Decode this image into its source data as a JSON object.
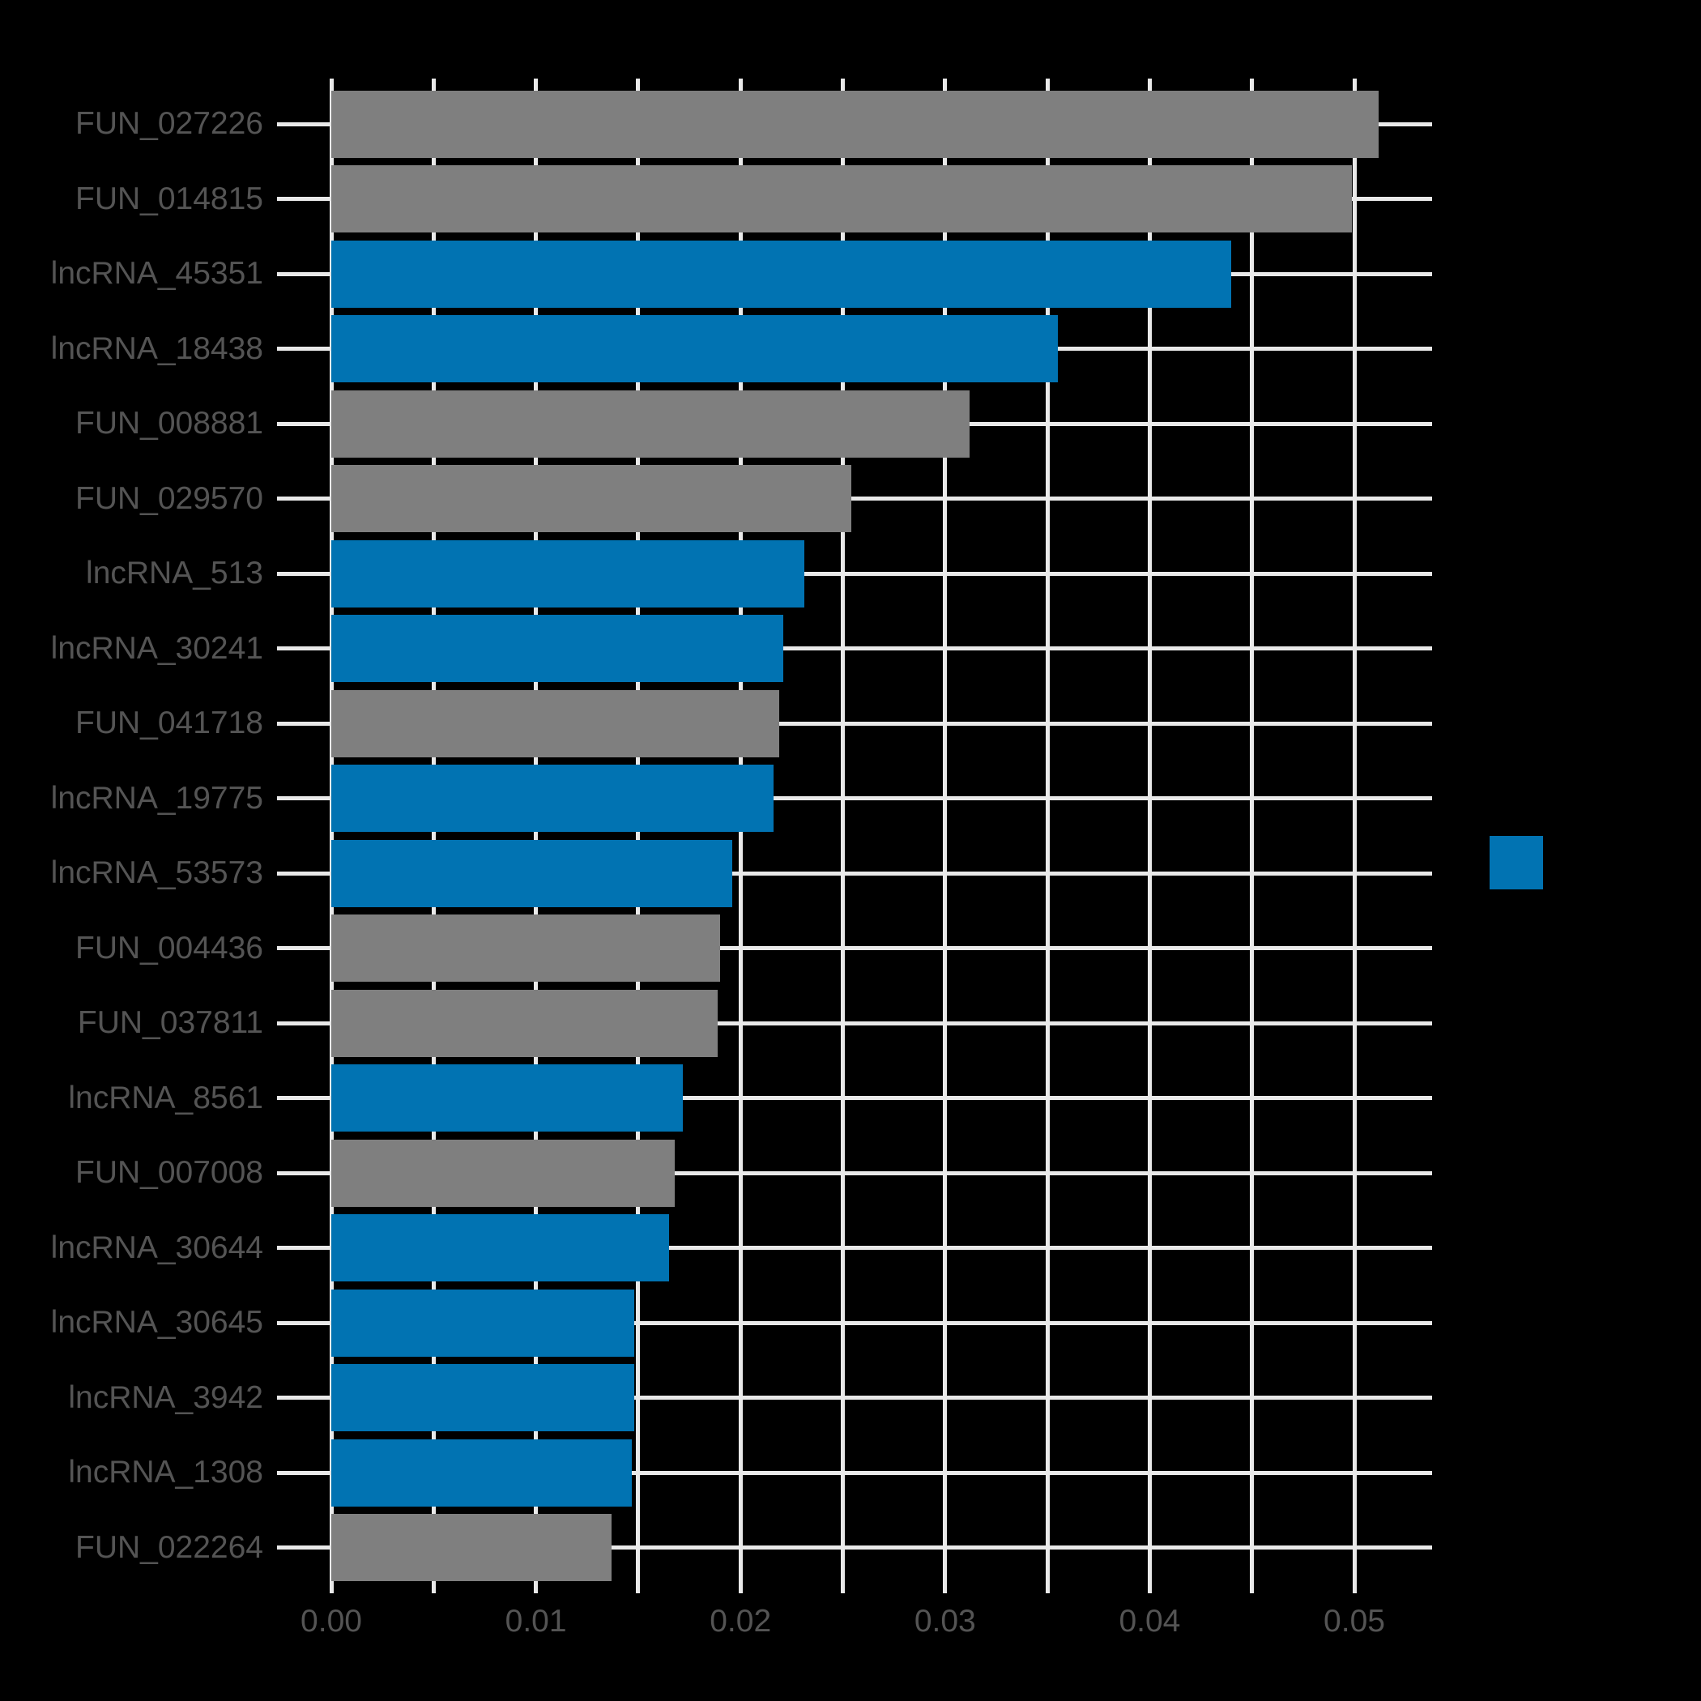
{
  "chart_data": {
    "type": "bar",
    "orientation": "horizontal",
    "title": "",
    "xlabel": "",
    "ylabel": "",
    "grid": true,
    "background_color": "#000000",
    "grid_color": "#e9e9e9",
    "text_color": "#545454",
    "xlim": [
      0,
      0.0538
    ],
    "x_tick_step": 0.005,
    "x_major_tick_labels": [
      "0.00",
      "0.01",
      "0.02",
      "0.03",
      "0.04",
      "0.05"
    ],
    "group_colors": {
      "lncRNA": "#0173b2",
      "FUN": "#7f7f7f"
    },
    "legend": {
      "visible": true,
      "swatch_color": "#0173b2",
      "label": ""
    },
    "items": [
      {
        "label": "FUN_027226",
        "group": "FUN",
        "value": 0.0512
      },
      {
        "label": "FUN_014815",
        "group": "FUN",
        "value": 0.0499
      },
      {
        "label": "lncRNA_45351",
        "group": "lncRNA",
        "value": 0.044
      },
      {
        "label": "lncRNA_18438",
        "group": "lncRNA",
        "value": 0.0355
      },
      {
        "label": "FUN_008881",
        "group": "FUN",
        "value": 0.0312
      },
      {
        "label": "FUN_029570",
        "group": "FUN",
        "value": 0.0254
      },
      {
        "label": "lncRNA_513",
        "group": "lncRNA",
        "value": 0.0231
      },
      {
        "label": "lncRNA_30241",
        "group": "lncRNA",
        "value": 0.0221
      },
      {
        "label": "FUN_041718",
        "group": "FUN",
        "value": 0.0219
      },
      {
        "label": "lncRNA_19775",
        "group": "lncRNA",
        "value": 0.0216
      },
      {
        "label": "lncRNA_53573",
        "group": "lncRNA",
        "value": 0.0196
      },
      {
        "label": "FUN_004436",
        "group": "FUN",
        "value": 0.019
      },
      {
        "label": "FUN_037811",
        "group": "FUN",
        "value": 0.0189
      },
      {
        "label": "lncRNA_8561",
        "group": "lncRNA",
        "value": 0.0172
      },
      {
        "label": "FUN_007008",
        "group": "FUN",
        "value": 0.0168
      },
      {
        "label": "lncRNA_30644",
        "group": "lncRNA",
        "value": 0.0165
      },
      {
        "label": "lncRNA_30645",
        "group": "lncRNA",
        "value": 0.0148
      },
      {
        "label": "lncRNA_3942",
        "group": "lncRNA",
        "value": 0.0148
      },
      {
        "label": "lncRNA_1308",
        "group": "lncRNA",
        "value": 0.0147
      },
      {
        "label": "FUN_022264",
        "group": "FUN",
        "value": 0.0137
      }
    ]
  }
}
